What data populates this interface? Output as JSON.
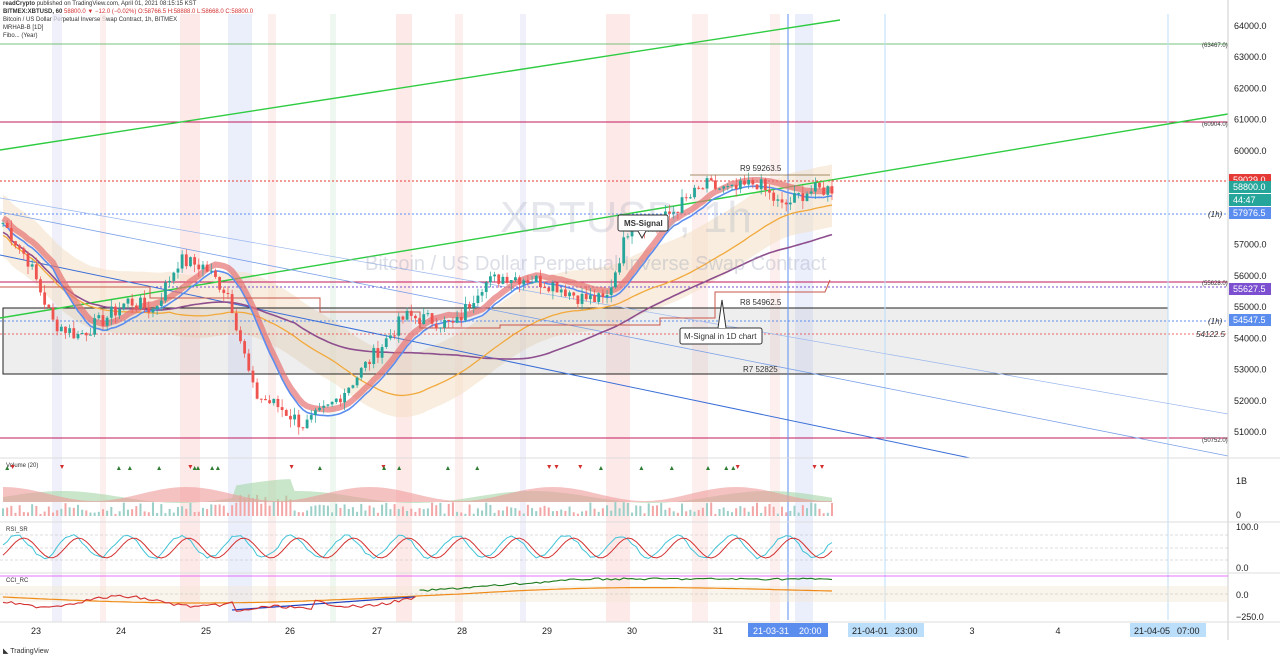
{
  "header": {
    "publisher": "readCrypto",
    "published_line": "published on TradingView.com, April 01, 2021 08:15:15 KST",
    "symbol": "BITMEX:XBTUSD, 60",
    "ohlc": "58800.0 ▼ −12.0 (−0.02%) O:58766.5 H:58888.0 L:58668.0 C:58800.0",
    "legend_line1": "Bitcoin / US Dollar Perpetual Inverse Swap Contract, 1h, BITMEX",
    "legend_line2": "MRHAB-B [1D]",
    "legend_line3": "Fibo... (Year)"
  },
  "watermark": {
    "ticker": "XBTUSD, 1h",
    "name": "Bitcoin / US Dollar Perpetual Inverse Swap Contract"
  },
  "annotations": {
    "r9": "R9 59263.5",
    "r8": "R8 54962.5",
    "r7": "R7 52825",
    "ms_signal": "MS-Signal",
    "m_signal": "M-Signal in 1D chart",
    "level_54122": "54122.5",
    "tag_1h_a": "(1h)",
    "tag_1h_b": "(1h)",
    "small_63467": "(63467.0)",
    "small_60904": "(60904.0)",
    "small_55628": "(55628.0)",
    "small_50752": "(50752.0)"
  },
  "price_tags": [
    {
      "value": "59029.0",
      "color": "#e53935"
    },
    {
      "value": "58800.0",
      "color": "#26a69a"
    },
    {
      "value": "44:47",
      "color": "#26a69a"
    },
    {
      "value": "57976.5",
      "color": "#5b8def"
    },
    {
      "value": "55627.5",
      "color": "#7b4fd0"
    },
    {
      "value": "54547.5",
      "color": "#5b8def"
    }
  ],
  "panes": {
    "volume_label": "Volume (20)",
    "volume_ticks": [
      "1B",
      "0"
    ],
    "rsi_label": "RSI_SR",
    "rsi_ticks": [
      "100.0",
      "0.0"
    ],
    "cci_label": "CCI_RC",
    "cci_ticks": [
      "0.0",
      "−250.0"
    ]
  },
  "time_axis": {
    "labels": [
      "23",
      "24",
      "25",
      "26",
      "27",
      "28",
      "29",
      "30",
      "31",
      "3",
      "4"
    ],
    "cursor_date": "21-03-31",
    "cursor_time": "20:00",
    "future1_date": "21-04-01",
    "future1_time": "23:00",
    "future2_date": "21-04-05",
    "future2_time": "07:00"
  },
  "footer": {
    "brand": "TradingView"
  },
  "chart_data": {
    "type": "candlestick",
    "title": "Bitcoin / US Dollar Perpetual Inverse Swap Contract, 1h, BITMEX",
    "ylabel": "",
    "ylim": [
      50300,
      64300
    ],
    "y_ticks": [
      51000,
      52000,
      53000,
      54000,
      55000,
      56000,
      57000,
      58000,
      59000,
      60000,
      61000,
      62000,
      63000,
      64000
    ],
    "x_categories": [
      "23",
      "24",
      "25",
      "26",
      "27",
      "28",
      "29",
      "30",
      "31"
    ],
    "approx_close_path": [
      57700,
      56500,
      54500,
      54100,
      54600,
      55200,
      54900,
      56500,
      56300,
      55400,
      52200,
      51800,
      51200,
      51800,
      52700,
      53700,
      54700,
      54600,
      54400,
      55700,
      56000,
      55900,
      55700,
      55300,
      55200,
      57800,
      57600,
      58300,
      58900,
      58700,
      59000,
      58200,
      58700,
      58800
    ],
    "horizontal_levels": [
      {
        "name": "R9",
        "value": 59263.5
      },
      {
        "name": "R8",
        "value": 54962.5
      },
      {
        "name": "R7",
        "value": 52825
      },
      {
        "name": "line",
        "value": 63467.0
      },
      {
        "name": "line",
        "value": 60904.0
      },
      {
        "name": "line",
        "value": 55628.0
      },
      {
        "name": "line",
        "value": 50752.0
      },
      {
        "name": "line",
        "value": 54122.5
      }
    ],
    "last_price": 58800.0,
    "grid": false
  }
}
